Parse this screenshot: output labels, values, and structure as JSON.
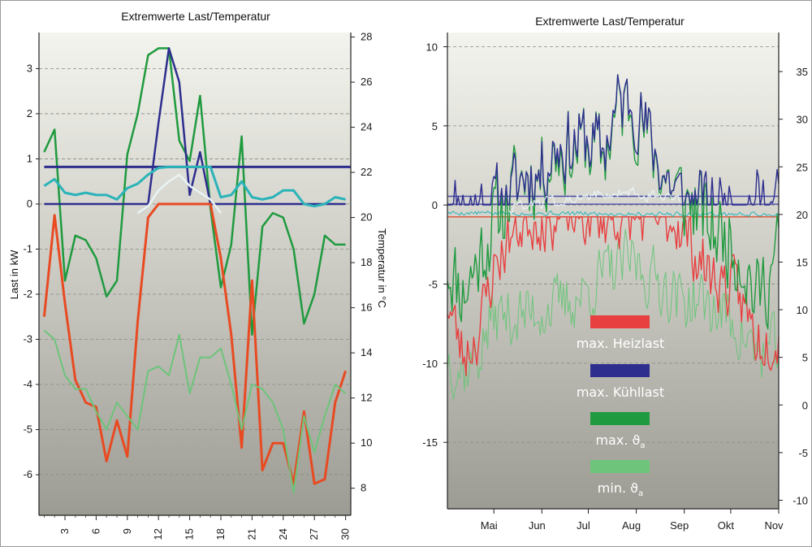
{
  "chart_data": [
    {
      "type": "line",
      "title": "Extremwerte Last/Temperatur",
      "ylabel": "Last in kW",
      "y2label": "Temperatur in °C",
      "xlim": [
        0.5,
        30.5
      ],
      "ylim": [
        -6.9,
        3.8
      ],
      "y2lim": [
        6.8,
        28.2
      ],
      "x_ticks": [
        3,
        6,
        9,
        12,
        15,
        18,
        21,
        24,
        27,
        30
      ],
      "y_ticks": [
        3,
        2,
        1,
        0,
        -1,
        -2,
        -3,
        -4,
        -5,
        -6
      ],
      "y2_ticks": [
        28,
        26,
        24,
        22,
        20,
        18,
        16,
        14,
        12,
        10,
        8
      ],
      "grid": true,
      "series": [
        {
          "axis": "left",
          "color": "#1f9a3e",
          "width": 2.5,
          "x": [
            1,
            2,
            3,
            4,
            5,
            6,
            7,
            8,
            9,
            10,
            11,
            12,
            13,
            14,
            15,
            16,
            17,
            18,
            19,
            20,
            21,
            22,
            23,
            24,
            25,
            26,
            27,
            28,
            29,
            30
          ],
          "y": [
            1.15,
            1.65,
            -1.7,
            -0.7,
            -0.8,
            -1.2,
            -2.05,
            -1.7,
            1.1,
            2.0,
            3.3,
            3.45,
            3.45,
            1.4,
            0.95,
            2.4,
            -0.1,
            -1.85,
            -0.9,
            1.5,
            -2.9,
            -0.5,
            -0.2,
            -0.3,
            -1.0,
            -2.65,
            -2.0,
            -0.7,
            -0.9,
            -0.9
          ]
        },
        {
          "axis": "left",
          "color": "#2e2e8e",
          "width": 2.5,
          "x": [
            1,
            2,
            3,
            4,
            5,
            6,
            7,
            8,
            9,
            10,
            11,
            12,
            13,
            14,
            15,
            16,
            17,
            18,
            19,
            20,
            21,
            22,
            23,
            24,
            25,
            26,
            27,
            28,
            29,
            30
          ],
          "y": [
            0,
            0,
            0,
            0,
            0,
            0,
            0,
            0,
            0,
            0,
            0,
            1.8,
            3.45,
            2.7,
            0.2,
            1.15,
            0,
            0,
            0,
            0,
            0,
            0,
            0,
            0,
            0,
            0,
            0,
            0,
            0,
            0
          ]
        },
        {
          "axis": "left",
          "color": "#2e2e8e",
          "width": 3,
          "x": [
            1,
            30.5
          ],
          "y": [
            0.82,
            0.82
          ]
        },
        {
          "axis": "left",
          "color": "#e84a22",
          "width": 3,
          "x": [
            1,
            2,
            3,
            4,
            5,
            6,
            7,
            8,
            9,
            10,
            11,
            12,
            13,
            14,
            15,
            16,
            17,
            18,
            19,
            20,
            21,
            22,
            23,
            24,
            25,
            26,
            27,
            28,
            29,
            30
          ],
          "y": [
            -2.5,
            -0.25,
            -2.2,
            -3.9,
            -4.4,
            -4.5,
            -5.7,
            -4.8,
            -5.6,
            -2.6,
            -0.3,
            0,
            0,
            0,
            0,
            0,
            0,
            -1.2,
            -2.9,
            -5.4,
            -1.7,
            -5.9,
            -5.3,
            -5.3,
            -6.2,
            -4.6,
            -6.2,
            -6.1,
            -4.4,
            -3.7
          ]
        },
        {
          "axis": "left",
          "color": "#2ab3b8",
          "width": 3,
          "x": [
            1,
            2,
            3,
            4,
            5,
            6,
            7,
            8,
            9,
            10,
            11,
            12,
            13,
            14,
            15,
            16,
            17,
            18,
            19,
            20,
            21,
            22,
            23,
            24,
            25,
            26,
            27,
            28,
            29,
            30
          ],
          "y": [
            0.4,
            0.55,
            0.25,
            0.2,
            0.25,
            0.2,
            0.2,
            0.1,
            0.35,
            0.45,
            0.65,
            0.8,
            0.82,
            0.82,
            0.82,
            0.82,
            0.82,
            0.15,
            0.2,
            0.5,
            0.15,
            0.1,
            0.15,
            0.3,
            0.3,
            0.0,
            -0.05,
            0.0,
            0.15,
            0.1
          ]
        },
        {
          "axis": "left",
          "color": "#e9f3f3",
          "width": 2.5,
          "x": [
            10,
            11,
            12,
            13,
            14,
            15,
            16,
            17,
            18
          ],
          "y": [
            -0.2,
            -0.05,
            0.3,
            0.5,
            0.65,
            0.4,
            0.25,
            0.1,
            -0.2
          ]
        },
        {
          "axis": "left",
          "color": "#6dc47a",
          "width": 2,
          "x": [
            1,
            2,
            3,
            4,
            5,
            6,
            7,
            8,
            9,
            10,
            11,
            12,
            13,
            14,
            15,
            16,
            17,
            18,
            19,
            20,
            21,
            22,
            23,
            24,
            25,
            26,
            27,
            28,
            29,
            30
          ],
          "y": [
            -2.8,
            -3.0,
            -3.8,
            -4.1,
            -4.1,
            -4.6,
            -5.0,
            -4.4,
            -4.7,
            -5.0,
            -3.7,
            -3.6,
            -3.8,
            -2.9,
            -4.2,
            -3.4,
            -3.4,
            -3.2,
            -4.0,
            -5.0,
            -4.0,
            -4.1,
            -4.4,
            -5.0,
            -6.4,
            -4.7,
            -5.5,
            -4.7,
            -4.0,
            -4.2
          ]
        }
      ]
    },
    {
      "type": "line",
      "title": "Extremwerte Last/Temperatur",
      "xlim": [
        0,
        214
      ],
      "ylim": [
        -19.2,
        10.9
      ],
      "y2lim": [
        -10.9,
        39.1
      ],
      "x_tick_labels": [
        "Mai",
        "Jun",
        "Jul",
        "Aug",
        "Sep",
        "Okt",
        "Nov"
      ],
      "x_tick_days": [
        30,
        61,
        91,
        122,
        153,
        183,
        214
      ],
      "y_ticks": [
        10,
        5,
        0,
        -5,
        -10,
        -15
      ],
      "y2_ticks": [
        35,
        30,
        25,
        20,
        15,
        10,
        5,
        0,
        -5,
        -10
      ],
      "grid": true,
      "legend": [
        {
          "label": "max. Heizlast",
          "color": "#e84040"
        },
        {
          "label": "max. Kühllast",
          "color": "#2e2e8e"
        },
        {
          "label": "max. ϑ",
          "subscript": "a",
          "color": "#1f9a3e"
        },
        {
          "label": "min. ϑ",
          "subscript": "a",
          "color": "#6dc47a"
        }
      ],
      "hlines": [
        {
          "axis": "left",
          "value": 0.55,
          "color": "#4a4aa8",
          "width": 1.4
        },
        {
          "axis": "left",
          "value": 0.05,
          "color": "#4a4aa8",
          "width": 1.4
        },
        {
          "axis": "left",
          "value": -0.75,
          "color": "#e05030",
          "width": 1.4
        }
      ],
      "series": [
        {
          "name": "max. ϑa",
          "axis": "left",
          "color": "#1f9a3e",
          "width": 1.4,
          "anchors": [
            [
              0,
              -3.5
            ],
            [
              10,
              -5.5
            ],
            [
              20,
              -3.5
            ],
            [
              30,
              -1.0
            ],
            [
              40,
              0.5
            ],
            [
              50,
              2.0
            ],
            [
              60,
              2.0
            ],
            [
              70,
              3.5
            ],
            [
              80,
              3.5
            ],
            [
              90,
              4.0
            ],
            [
              100,
              3.0
            ],
            [
              110,
              6.0
            ],
            [
              120,
              6.5
            ],
            [
              130,
              4.0
            ],
            [
              140,
              2.0
            ],
            [
              150,
              0.5
            ],
            [
              160,
              0.0
            ],
            [
              170,
              -1.5
            ],
            [
              180,
              -2.0
            ],
            [
              190,
              -3.0
            ],
            [
              200,
              -6.0
            ],
            [
              214,
              -3.0
            ]
          ],
          "amp": 2.8,
          "seed": 11
        },
        {
          "name": "max. Kühllast",
          "axis": "left",
          "color": "#2e2e8e",
          "width": 1.4,
          "anchors": [
            [
              0,
              0
            ],
            [
              30,
              0
            ],
            [
              40,
              0.4
            ],
            [
              50,
              2.0
            ],
            [
              60,
              2.0
            ],
            [
              70,
              3.8
            ],
            [
              80,
              3.8
            ],
            [
              90,
              4.2
            ],
            [
              100,
              3.3
            ],
            [
              110,
              6.3
            ],
            [
              120,
              6.7
            ],
            [
              130,
              4.3
            ],
            [
              140,
              2.0
            ],
            [
              150,
              0.4
            ],
            [
              160,
              0
            ],
            [
              214,
              0
            ]
          ],
          "amp": 2.4,
          "seed": 11,
          "clip_min": 0
        },
        {
          "name": "max. Heizlast",
          "axis": "left",
          "color": "#e84040",
          "width": 1.4,
          "anchors": [
            [
              0,
              -6.0
            ],
            [
              10,
              -9.5
            ],
            [
              20,
              -8.0
            ],
            [
              30,
              -4.0
            ],
            [
              40,
              -2.0
            ],
            [
              50,
              -1.0
            ],
            [
              60,
              -0.8
            ],
            [
              80,
              -0.8
            ],
            [
              100,
              -0.8
            ],
            [
              130,
              -0.8
            ],
            [
              150,
              -1.0
            ],
            [
              160,
              -3.0
            ],
            [
              170,
              -4.5
            ],
            [
              180,
              -5.0
            ],
            [
              190,
              -6.0
            ],
            [
              200,
              -8.5
            ],
            [
              214,
              -8.0
            ]
          ],
          "amp": 2.0,
          "seed": 23,
          "clip_max": -0.75
        },
        {
          "name": "min. ϑa",
          "axis": "left",
          "color": "#6dc47a",
          "width": 1.0,
          "anchors": [
            [
              0,
              -9.5
            ],
            [
              10,
              -10.5
            ],
            [
              20,
              -9.5
            ],
            [
              30,
              -7.0
            ],
            [
              40,
              -7.0
            ],
            [
              50,
              -7.0
            ],
            [
              60,
              -6.5
            ],
            [
              70,
              -6.5
            ],
            [
              80,
              -6.0
            ],
            [
              90,
              -5.5
            ],
            [
              100,
              -4.5
            ],
            [
              110,
              -4.0
            ],
            [
              120,
              -3.5
            ],
            [
              130,
              -4.5
            ],
            [
              140,
              -5.0
            ],
            [
              150,
              -6.0
            ],
            [
              160,
              -6.0
            ],
            [
              170,
              -6.5
            ],
            [
              180,
              -7.0
            ],
            [
              190,
              -8.0
            ],
            [
              200,
              -9.5
            ],
            [
              214,
              -9.0
            ]
          ],
          "amp": 2.0,
          "seed": 37
        },
        {
          "name": "cooling-water",
          "axis": "left",
          "color": "#2ab3b8",
          "width": 1.0,
          "anchors": [
            [
              0,
              -0.5
            ],
            [
              214,
              -0.6
            ]
          ],
          "amp": 0.15,
          "seed": 5
        },
        {
          "name": "summer-white",
          "axis": "left",
          "color": "#e9f3f3",
          "width": 1.2,
          "anchors": [
            [
              40,
              -0.2
            ],
            [
              90,
              0.6
            ],
            [
              120,
              0.8
            ],
            [
              150,
              0.2
            ]
          ],
          "amp": 0.35,
          "seed": 8,
          "range": [
            40,
            150
          ]
        }
      ]
    }
  ]
}
